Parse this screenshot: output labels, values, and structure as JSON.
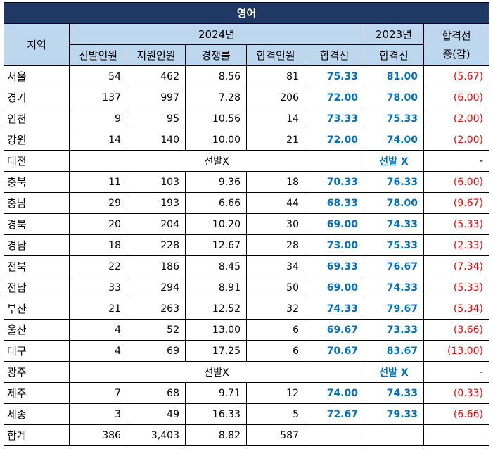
{
  "title": "영어",
  "header": {
    "region": "지역",
    "year_2024": "2024년",
    "year_2023": "2023년",
    "change": "합격선\n증(감)",
    "cols_2024": [
      "선발인원",
      "지원인원",
      "경쟁률",
      "합격인원",
      "합격선"
    ],
    "col_2023": "합격선"
  },
  "rows": [
    {
      "region": "서울",
      "selected": "54",
      "applicants": "462",
      "ratio": "8.56",
      "passed": "81",
      "cutoff_2024": "75.33",
      "cutoff_2023": "81.00",
      "change": "(5.67)"
    },
    {
      "region": "경기",
      "selected": "137",
      "applicants": "997",
      "ratio": "7.28",
      "passed": "206",
      "cutoff_2024": "72.00",
      "cutoff_2023": "78.00",
      "change": "(6.00)"
    },
    {
      "region": "인천",
      "selected": "9",
      "applicants": "95",
      "ratio": "10.56",
      "passed": "14",
      "cutoff_2024": "73.33",
      "cutoff_2023": "75.33",
      "change": "(2.00)"
    },
    {
      "region": "강원",
      "selected": "14",
      "applicants": "140",
      "ratio": "10.00",
      "passed": "21",
      "cutoff_2024": "72.00",
      "cutoff_2023": "74.00",
      "change": "(2.00)"
    },
    {
      "region": "대전",
      "no_selection_2024": "선발X",
      "no_selection_2023": "선발 X",
      "change": "-"
    },
    {
      "region": "충북",
      "selected": "11",
      "applicants": "103",
      "ratio": "9.36",
      "passed": "18",
      "cutoff_2024": "70.33",
      "cutoff_2023": "76.33",
      "change": "(6.00)"
    },
    {
      "region": "충남",
      "selected": "29",
      "applicants": "193",
      "ratio": "6.66",
      "passed": "44",
      "cutoff_2024": "68.33",
      "cutoff_2023": "78.00",
      "change": "(9.67)"
    },
    {
      "region": "경북",
      "selected": "20",
      "applicants": "204",
      "ratio": "10.20",
      "passed": "30",
      "cutoff_2024": "69.00",
      "cutoff_2023": "74.33",
      "change": "(5.33)"
    },
    {
      "region": "경남",
      "selected": "18",
      "applicants": "228",
      "ratio": "12.67",
      "passed": "28",
      "cutoff_2024": "73.00",
      "cutoff_2023": "75.33",
      "change": "(2.33)"
    },
    {
      "region": "전북",
      "selected": "22",
      "applicants": "186",
      "ratio": "8.45",
      "passed": "34",
      "cutoff_2024": "69.33",
      "cutoff_2023": "76.67",
      "change": "(7.34)"
    },
    {
      "region": "전남",
      "selected": "33",
      "applicants": "294",
      "ratio": "8.91",
      "passed": "50",
      "cutoff_2024": "69.00",
      "cutoff_2023": "74.33",
      "change": "(5.33)"
    },
    {
      "region": "부산",
      "selected": "21",
      "applicants": "263",
      "ratio": "12.52",
      "passed": "32",
      "cutoff_2024": "74.33",
      "cutoff_2023": "79.67",
      "change": "(5.34)"
    },
    {
      "region": "울산",
      "selected": "4",
      "applicants": "52",
      "ratio": "13.00",
      "passed": "6",
      "cutoff_2024": "69.67",
      "cutoff_2023": "73.33",
      "change": "(3.66)"
    },
    {
      "region": "대구",
      "selected": "4",
      "applicants": "69",
      "ratio": "17.25",
      "passed": "6",
      "cutoff_2024": "70.67",
      "cutoff_2023": "83.67",
      "change": "(13.00)"
    },
    {
      "region": "광주",
      "no_selection_2024": "선발X",
      "no_selection_2023": "선발 X",
      "change": "-"
    },
    {
      "region": "제주",
      "selected": "7",
      "applicants": "68",
      "ratio": "9.71",
      "passed": "12",
      "cutoff_2024": "74.00",
      "cutoff_2023": "74.33",
      "change": "(0.33)"
    },
    {
      "region": "세종",
      "selected": "3",
      "applicants": "49",
      "ratio": "16.33",
      "passed": "5",
      "cutoff_2024": "72.67",
      "cutoff_2023": "79.33",
      "change": "(6.66)"
    }
  ],
  "total": {
    "region": "합계",
    "selected": "386",
    "applicants": "3,403",
    "ratio": "8.82",
    "passed": "587",
    "cutoff_2024": "",
    "cutoff_2023": "",
    "change": ""
  },
  "colors": {
    "title_bg": "#1f3864",
    "header_bg": "#bdd7ee",
    "cutoff_text": "#0070c0",
    "change_text": "#ff0000"
  }
}
